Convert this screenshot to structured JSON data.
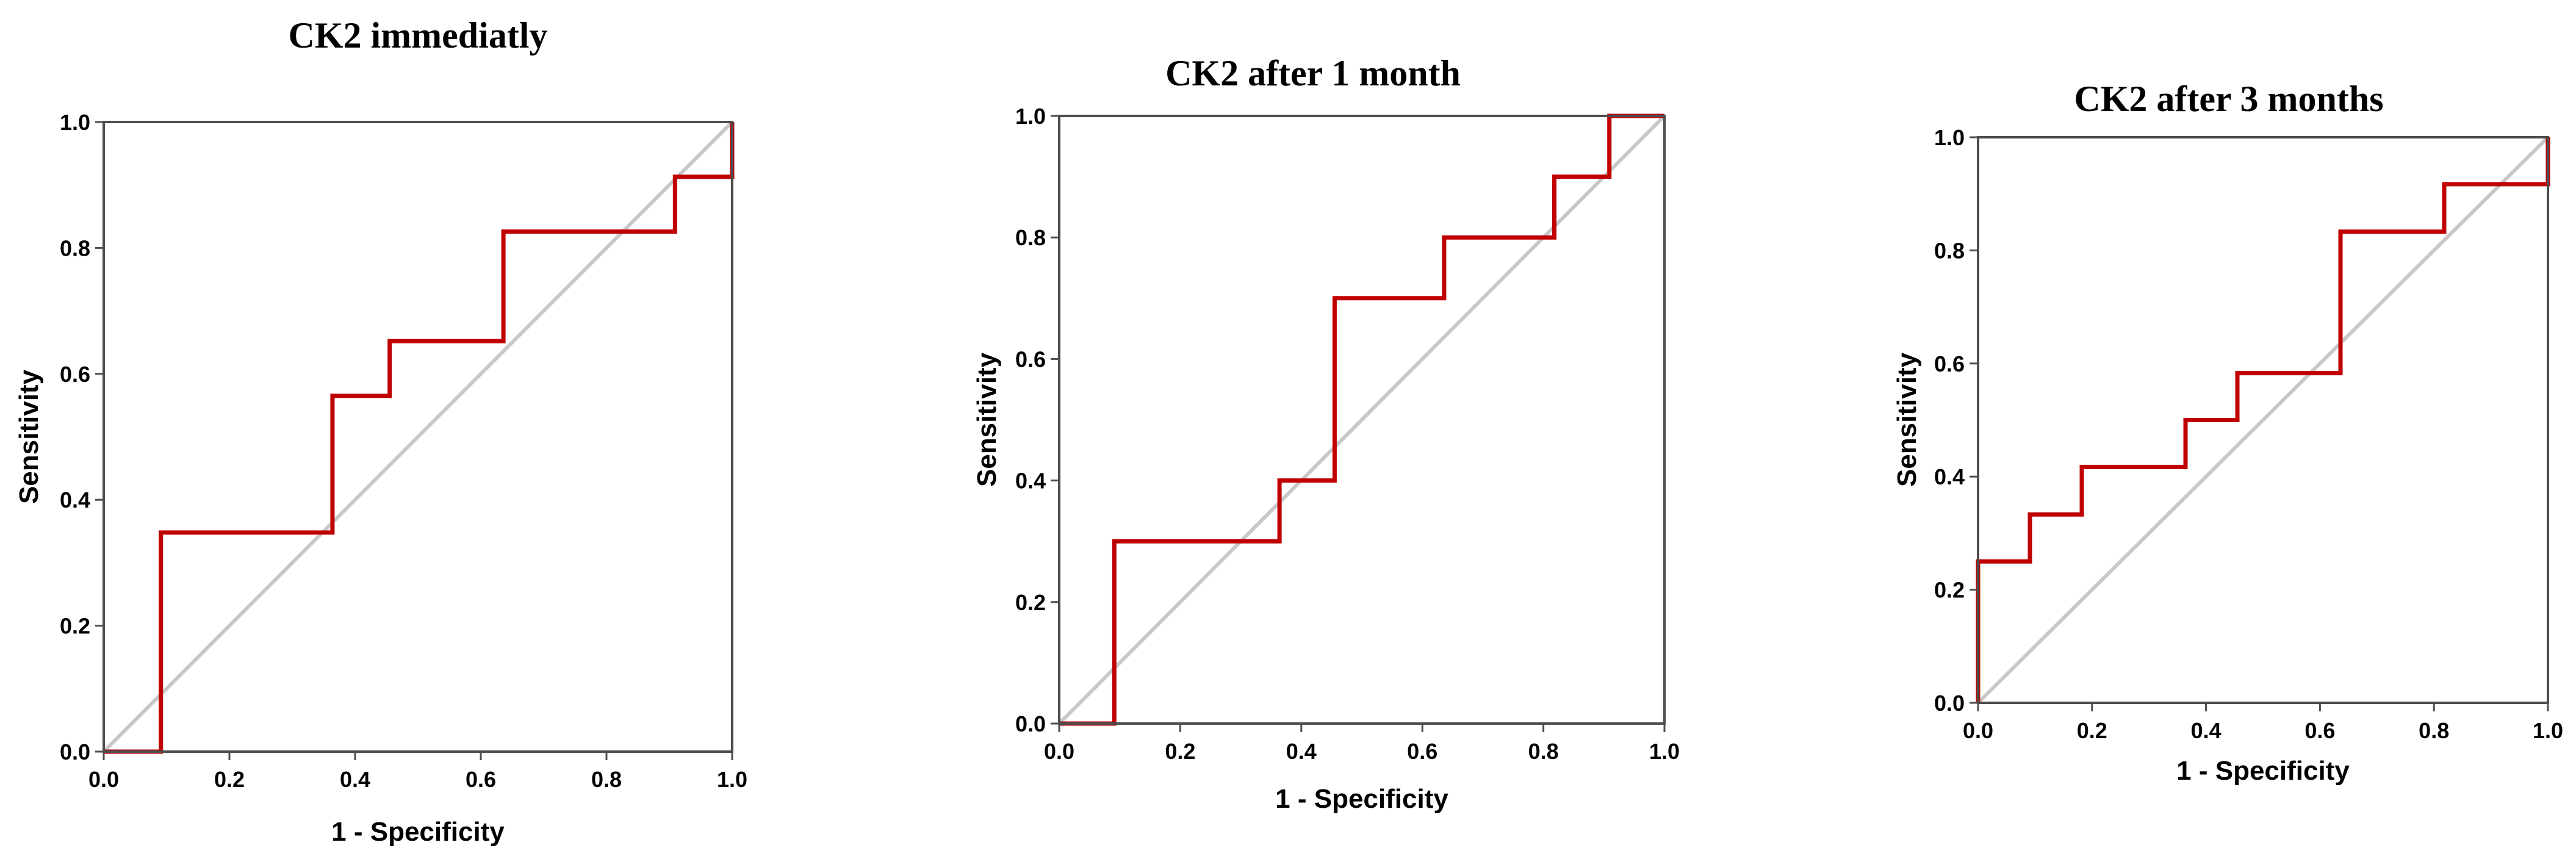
{
  "chart_data": [
    {
      "type": "line",
      "title": "CK2 immediatly",
      "xlabel": "1 - Specificity",
      "ylabel": "Sensitivity",
      "xlim": [
        0,
        1
      ],
      "ylim": [
        0,
        1
      ],
      "xticks": [
        "0.0",
        "0.2",
        "0.4",
        "0.6",
        "0.8",
        "1.0"
      ],
      "yticks": [
        "0.0",
        "0.2",
        "0.4",
        "0.6",
        "0.8",
        "1.0"
      ],
      "colors": {
        "roc": "#c00000",
        "reference": "#c8c8c8",
        "frame": "#4d4d4d"
      },
      "series": [
        {
          "name": "ROC curve",
          "x": [
            0,
            0.091,
            0.091,
            0.364,
            0.364,
            0.455,
            0.455,
            0.636,
            0.636,
            0.909,
            0.909,
            1.0,
            1.0
          ],
          "y": [
            0,
            0,
            0.348,
            0.348,
            0.565,
            0.565,
            0.652,
            0.652,
            0.826,
            0.826,
            0.913,
            0.913,
            1.0
          ]
        },
        {
          "name": "Reference line",
          "x": [
            0,
            1
          ],
          "y": [
            0,
            1
          ]
        }
      ]
    },
    {
      "type": "line",
      "title": "CK2 after 1 month",
      "xlabel": "1 - Specificity",
      "ylabel": "Sensitivity",
      "xlim": [
        0,
        1
      ],
      "ylim": [
        0,
        1
      ],
      "xticks": [
        "0.0",
        "0.2",
        "0.4",
        "0.6",
        "0.8",
        "1.0"
      ],
      "yticks": [
        "0.0",
        "0.2",
        "0.4",
        "0.6",
        "0.8",
        "1.0"
      ],
      "colors": {
        "roc": "#c00000",
        "reference": "#c8c8c8",
        "frame": "#4d4d4d"
      },
      "series": [
        {
          "name": "ROC curve",
          "x": [
            0,
            0.091,
            0.091,
            0.364,
            0.364,
            0.455,
            0.455,
            0.636,
            0.636,
            0.818,
            0.818,
            0.909,
            0.909,
            1.0
          ],
          "y": [
            0,
            0,
            0.3,
            0.3,
            0.4,
            0.4,
            0.7,
            0.7,
            0.8,
            0.8,
            0.9,
            0.9,
            1.0,
            1.0
          ]
        },
        {
          "name": "Reference line",
          "x": [
            0,
            1
          ],
          "y": [
            0,
            1
          ]
        }
      ]
    },
    {
      "type": "line",
      "title": "CK2 after 3 months",
      "xlabel": "1 - Specificity",
      "ylabel": "Sensitivity",
      "xlim": [
        0,
        1
      ],
      "ylim": [
        0,
        1
      ],
      "xticks": [
        "0.0",
        "0.2",
        "0.4",
        "0.6",
        "0.8",
        "1.0"
      ],
      "yticks": [
        "0.0",
        "0.2",
        "0.4",
        "0.6",
        "0.8",
        "1.0"
      ],
      "colors": {
        "roc": "#c00000",
        "reference": "#c8c8c8",
        "frame": "#4d4d4d"
      },
      "series": [
        {
          "name": "ROC curve",
          "x": [
            0,
            0,
            0.091,
            0.091,
            0.182,
            0.182,
            0.364,
            0.364,
            0.455,
            0.455,
            0.636,
            0.636,
            0.818,
            0.818,
            1.0,
            1.0
          ],
          "y": [
            0,
            0.25,
            0.25,
            0.333,
            0.333,
            0.417,
            0.417,
            0.5,
            0.5,
            0.583,
            0.583,
            0.833,
            0.833,
            0.917,
            0.917,
            1.0
          ]
        },
        {
          "name": "Reference line",
          "x": [
            0,
            1
          ],
          "y": [
            0,
            1
          ]
        }
      ]
    }
  ]
}
